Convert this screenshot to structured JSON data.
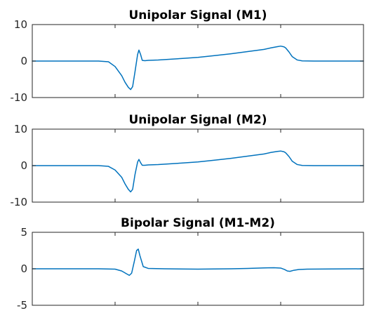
{
  "chart_data": [
    {
      "type": "line",
      "title": "Unipolar Signal (M1)",
      "xlabel": "",
      "ylabel": "",
      "xlim": [
        0,
        1000
      ],
      "ylim": [
        -10,
        10
      ],
      "yticks": [
        -10,
        0,
        10
      ],
      "ytick_labels": [
        "-10",
        "0",
        "10"
      ],
      "xticks": [
        250,
        500,
        750
      ],
      "series": [
        {
          "color": "#0072BD",
          "x": [
            0,
            100,
            200,
            230,
            250,
            270,
            280,
            290,
            297,
            303,
            310,
            318,
            322,
            327,
            332,
            340,
            350,
            380,
            450,
            500,
            550,
            600,
            650,
            700,
            720,
            740,
            750,
            760,
            765,
            775,
            785,
            800,
            815,
            850,
            1000
          ],
          "y": [
            0,
            0,
            0,
            -0.2,
            -1.5,
            -4.0,
            -5.8,
            -7.2,
            -7.8,
            -7.0,
            -3.0,
            1.8,
            3.0,
            1.8,
            0.2,
            0.1,
            0.2,
            0.3,
            0.7,
            1.0,
            1.5,
            2.0,
            2.6,
            3.2,
            3.6,
            3.95,
            4.1,
            3.9,
            3.6,
            2.5,
            1.2,
            0.3,
            0.05,
            0,
            0
          ]
        }
      ]
    },
    {
      "type": "line",
      "title": "Unipolar Signal (M2)",
      "xlabel": "",
      "ylabel": "",
      "xlim": [
        0,
        1000
      ],
      "ylim": [
        -10,
        10
      ],
      "yticks": [
        -10,
        0,
        10
      ],
      "ytick_labels": [
        "-10",
        "0",
        "10"
      ],
      "xticks": [
        250,
        500,
        750
      ],
      "series": [
        {
          "color": "#0072BD",
          "x": [
            0,
            100,
            200,
            230,
            250,
            270,
            280,
            290,
            297,
            303,
            310,
            318,
            322,
            327,
            332,
            340,
            350,
            380,
            450,
            500,
            550,
            600,
            650,
            700,
            720,
            740,
            750,
            760,
            765,
            775,
            785,
            800,
            815,
            850,
            1000
          ],
          "y": [
            0,
            0,
            0,
            -0.2,
            -1.2,
            -3.2,
            -5.0,
            -6.5,
            -7.2,
            -6.5,
            -2.5,
            1.0,
            1.7,
            0.8,
            0.1,
            0.1,
            0.2,
            0.3,
            0.7,
            1.0,
            1.5,
            2.0,
            2.6,
            3.2,
            3.6,
            3.9,
            4.0,
            3.8,
            3.5,
            2.5,
            1.2,
            0.3,
            0.05,
            0,
            0
          ]
        }
      ]
    },
    {
      "type": "line",
      "title": "Bipolar Signal (M1-M2)",
      "xlabel": "",
      "ylabel": "",
      "xlim": [
        0,
        1000
      ],
      "ylim": [
        -5,
        5
      ],
      "yticks": [
        -5,
        0,
        5
      ],
      "ytick_labels": [
        "-5",
        "0",
        "5"
      ],
      "xticks": [
        250,
        500,
        750
      ],
      "series": [
        {
          "color": "#0072BD",
          "x": [
            0,
            200,
            250,
            270,
            285,
            293,
            300,
            308,
            315,
            320,
            325,
            335,
            350,
            400,
            500,
            600,
            650,
            700,
            730,
            750,
            762,
            770,
            778,
            790,
            805,
            830,
            1000
          ],
          "y": [
            0,
            0,
            -0.05,
            -0.3,
            -0.7,
            -0.9,
            -0.6,
            1.0,
            2.5,
            2.7,
            1.8,
            0.3,
            0.05,
            0.0,
            -0.05,
            0.0,
            0.05,
            0.12,
            0.15,
            0.1,
            -0.1,
            -0.3,
            -0.35,
            -0.2,
            -0.1,
            -0.05,
            0
          ]
        }
      ]
    }
  ]
}
